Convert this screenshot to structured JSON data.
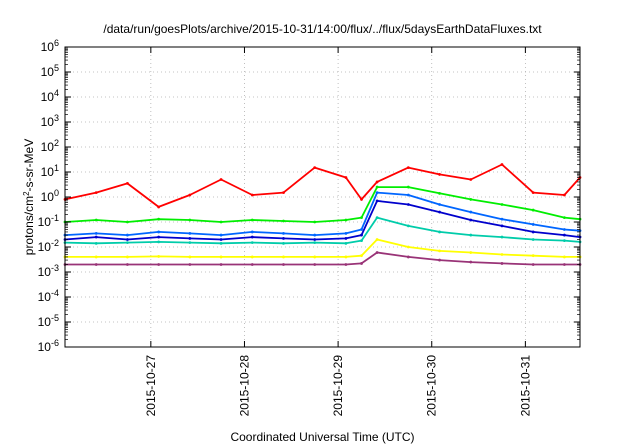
{
  "chart_data": {
    "type": "line",
    "title": "/data/run/goesPlots/archive/2015-10-31/14:00/flux/../flux/5daysEarthDataFluxes.txt",
    "xlabel": "Coordinated Universal Time (UTC)",
    "ylabel": {
      "base": "protons/cm",
      "sup": "2",
      "rest": "-s-sr-MeV"
    },
    "yscale": "log",
    "ylim_exp": [
      -6,
      6
    ],
    "xlim": [
      "2015-10-26 02:00",
      "2015-10-31 14:00"
    ],
    "x_ticks": [
      "2015-10-27",
      "2015-10-28",
      "2015-10-29",
      "2015-10-30",
      "2015-10-31"
    ],
    "grid": true,
    "x": [
      "2015-10-26 02:00",
      "2015-10-26 10:00",
      "2015-10-26 18:00",
      "2015-10-27 02:00",
      "2015-10-27 10:00",
      "2015-10-27 18:00",
      "2015-10-28 02:00",
      "2015-10-28 10:00",
      "2015-10-28 18:00",
      "2015-10-29 02:00",
      "2015-10-29 06:00",
      "2015-10-29 10:00",
      "2015-10-29 18:00",
      "2015-10-30 02:00",
      "2015-10-30 10:00",
      "2015-10-30 18:00",
      "2015-10-31 02:00",
      "2015-10-31 10:00",
      "2015-10-31 14:00"
    ],
    "series": [
      {
        "color": "#ff0000",
        "values": [
          0.8,
          1.5,
          3.5,
          0.4,
          1.2,
          5.0,
          1.2,
          1.5,
          15,
          6.0,
          0.8,
          4.0,
          15,
          8,
          5,
          20,
          1.5,
          1.2,
          6
        ]
      },
      {
        "color": "#00ee00",
        "values": [
          0.1,
          0.12,
          0.1,
          0.13,
          0.12,
          0.1,
          0.12,
          0.11,
          0.1,
          0.12,
          0.15,
          2.5,
          2.5,
          1.4,
          0.8,
          0.5,
          0.3,
          0.15,
          0.13
        ]
      },
      {
        "color": "#0066ff",
        "values": [
          0.03,
          0.035,
          0.03,
          0.04,
          0.035,
          0.03,
          0.04,
          0.035,
          0.03,
          0.035,
          0.05,
          1.5,
          1.2,
          0.5,
          0.25,
          0.13,
          0.08,
          0.05,
          0.045
        ]
      },
      {
        "color": "#0000cc",
        "values": [
          0.02,
          0.025,
          0.02,
          0.025,
          0.022,
          0.02,
          0.025,
          0.022,
          0.02,
          0.022,
          0.03,
          0.7,
          0.5,
          0.25,
          0.12,
          0.07,
          0.04,
          0.03,
          0.025
        ]
      },
      {
        "color": "#00ccaa",
        "values": [
          0.015,
          0.014,
          0.015,
          0.016,
          0.015,
          0.014,
          0.015,
          0.014,
          0.015,
          0.014,
          0.018,
          0.15,
          0.07,
          0.04,
          0.03,
          0.025,
          0.02,
          0.018,
          0.016
        ]
      },
      {
        "color": "#ffff00",
        "values": [
          0.004,
          0.004,
          0.004,
          0.0042,
          0.004,
          0.004,
          0.004,
          0.004,
          0.004,
          0.004,
          0.0045,
          0.02,
          0.01,
          0.007,
          0.006,
          0.005,
          0.0045,
          0.004,
          0.004
        ]
      },
      {
        "color": "#993377",
        "values": [
          0.002,
          0.002,
          0.002,
          0.002,
          0.002,
          0.002,
          0.002,
          0.002,
          0.002,
          0.002,
          0.0022,
          0.006,
          0.004,
          0.003,
          0.0025,
          0.0022,
          0.002,
          0.002,
          0.002
        ]
      }
    ]
  }
}
